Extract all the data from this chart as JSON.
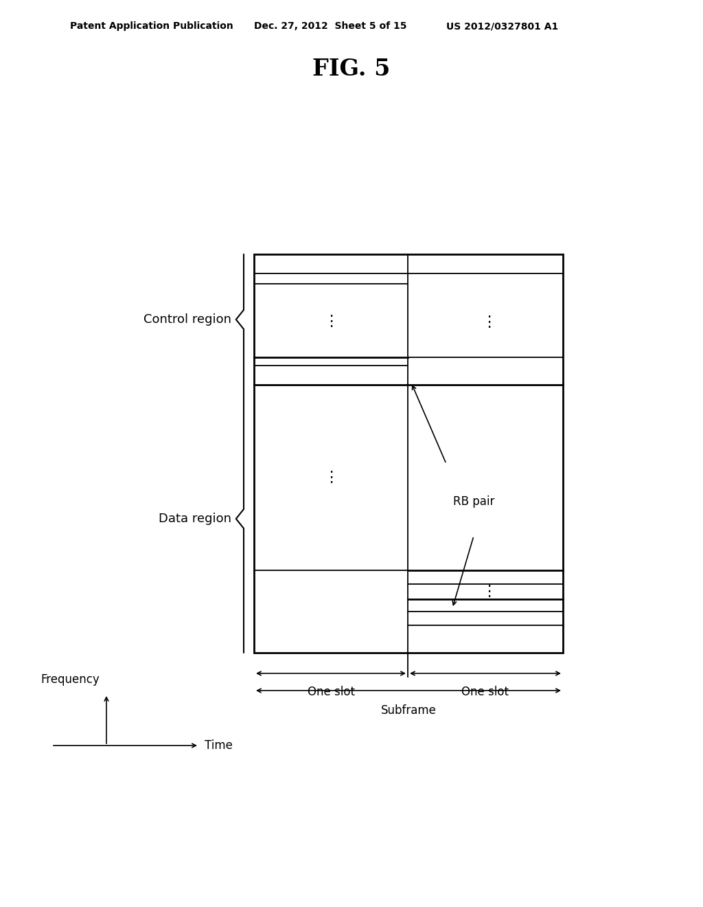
{
  "bg_color": "#ffffff",
  "text_color": "#000000",
  "header_left": "Patent Application Publication",
  "header_mid": "Dec. 27, 2012  Sheet 5 of 15",
  "header_right": "US 2012/0327801 A1",
  "fig_label": "FIG. 5",
  "control_region_label": "Control region",
  "data_region_label": "Data region",
  "rb_pair_label": "RB pair",
  "frequency_label": "Frequency",
  "time_label": "Time",
  "one_slot_label": "One slot",
  "subframe_label": "Subframe",
  "font_size_header": 10,
  "font_size_fig": 24,
  "font_size_labels": 13,
  "font_size_small": 12
}
